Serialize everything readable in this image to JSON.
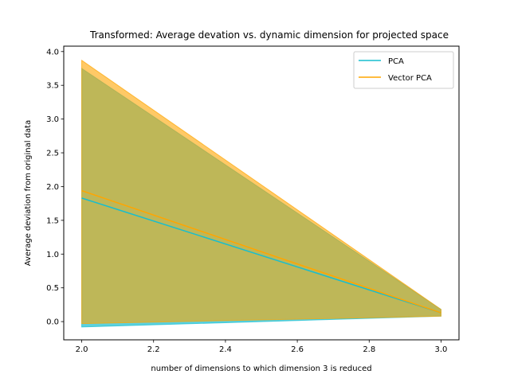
{
  "chart_data": {
    "type": "line",
    "title": "Transformed: Average devation vs. dynamic dimension for projected space",
    "xlabel": "number of dimensions to which dimension 3 is reduced",
    "ylabel": "Average deviation from original data",
    "xlim": [
      1.95,
      3.05
    ],
    "ylim": [
      -0.27,
      4.08
    ],
    "x_ticks": [
      2.0,
      2.2,
      2.4,
      2.6,
      2.8,
      3.0
    ],
    "x_tick_labels": [
      "2.0",
      "2.2",
      "2.4",
      "2.6",
      "2.8",
      "3.0"
    ],
    "y_ticks": [
      0.0,
      0.5,
      1.0,
      1.5,
      2.0,
      2.5,
      3.0,
      3.5,
      4.0
    ],
    "y_tick_labels": [
      "0.0",
      "0.5",
      "1.0",
      "1.5",
      "2.0",
      "2.5",
      "3.0",
      "3.5",
      "4.0"
    ],
    "grid": false,
    "legend_position": "top-right",
    "x": [
      2,
      3
    ],
    "series": [
      {
        "name": "PCA",
        "color": "#17becf",
        "values": [
          1.83,
          0.13
        ],
        "band_lower": [
          -0.08,
          0.08
        ],
        "band_upper": [
          3.75,
          0.18
        ]
      },
      {
        "name": "Vector PCA",
        "color": "#ffa500",
        "values": [
          1.94,
          0.13
        ],
        "band_lower": [
          -0.03,
          0.08
        ],
        "band_upper": [
          3.87,
          0.18
        ]
      }
    ]
  }
}
